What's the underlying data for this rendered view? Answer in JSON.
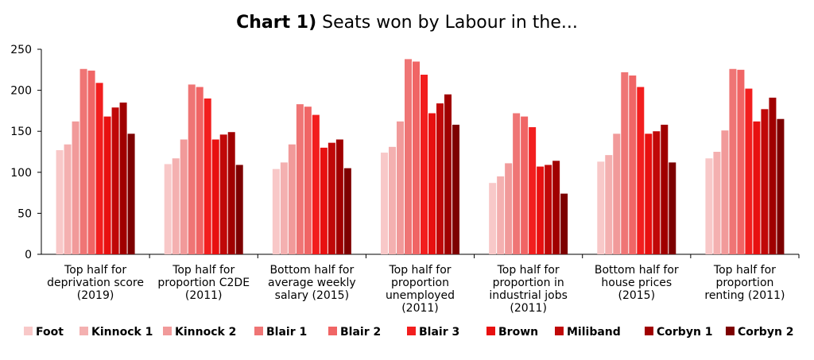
{
  "chart_data": {
    "type": "bar",
    "title_bold": "Chart 1)",
    "title_rest": " Seats won by Labour in the...",
    "ylim": [
      0,
      250
    ],
    "yticks": [
      0,
      50,
      100,
      150,
      200,
      250
    ],
    "categories": [
      [
        "Top half for",
        "deprivation score",
        "(2019)"
      ],
      [
        "Top half for",
        "proportion C2DE",
        "(2011)"
      ],
      [
        "Bottom half for",
        "average weekly",
        "salary (2015)"
      ],
      [
        "Top half for",
        "proportion",
        "unemployed",
        "(2011)"
      ],
      [
        "Top half for",
        "proportion in",
        "industrial jobs",
        "(2011)"
      ],
      [
        "Bottom half for",
        "house prices",
        "(2015)"
      ],
      [
        "Top half for",
        "proportion",
        "renting (2011)"
      ]
    ],
    "series": [
      {
        "name": "Foot",
        "color": "#f8c8c8",
        "values": [
          127,
          110,
          104,
          124,
          87,
          113,
          117
        ]
      },
      {
        "name": "Kinnock 1",
        "color": "#f4b0b0",
        "values": [
          134,
          117,
          112,
          131,
          95,
          121,
          125
        ]
      },
      {
        "name": "Kinnock 2",
        "color": "#f19a9a",
        "values": [
          162,
          140,
          134,
          162,
          111,
          147,
          151
        ]
      },
      {
        "name": "Blair 1",
        "color": "#ef7575",
        "values": [
          226,
          207,
          183,
          238,
          172,
          222,
          226
        ]
      },
      {
        "name": "Blair 2",
        "color": "#f06565",
        "values": [
          224,
          204,
          180,
          235,
          168,
          218,
          225
        ]
      },
      {
        "name": "Blair 3",
        "color": "#f21e1e",
        "values": [
          209,
          190,
          170,
          219,
          155,
          204,
          202
        ]
      },
      {
        "name": "Brown",
        "color": "#e81010",
        "values": [
          168,
          140,
          130,
          172,
          107,
          147,
          162
        ]
      },
      {
        "name": "Miliband",
        "color": "#c00808",
        "values": [
          179,
          146,
          136,
          184,
          109,
          150,
          177
        ]
      },
      {
        "name": "Corbyn 1",
        "color": "#a00000",
        "values": [
          185,
          149,
          140,
          195,
          114,
          158,
          191
        ]
      },
      {
        "name": "Corbyn 2",
        "color": "#7d0000",
        "values": [
          147,
          109,
          105,
          158,
          74,
          112,
          165
        ]
      }
    ],
    "legend_position": "bottom",
    "grid": false
  }
}
